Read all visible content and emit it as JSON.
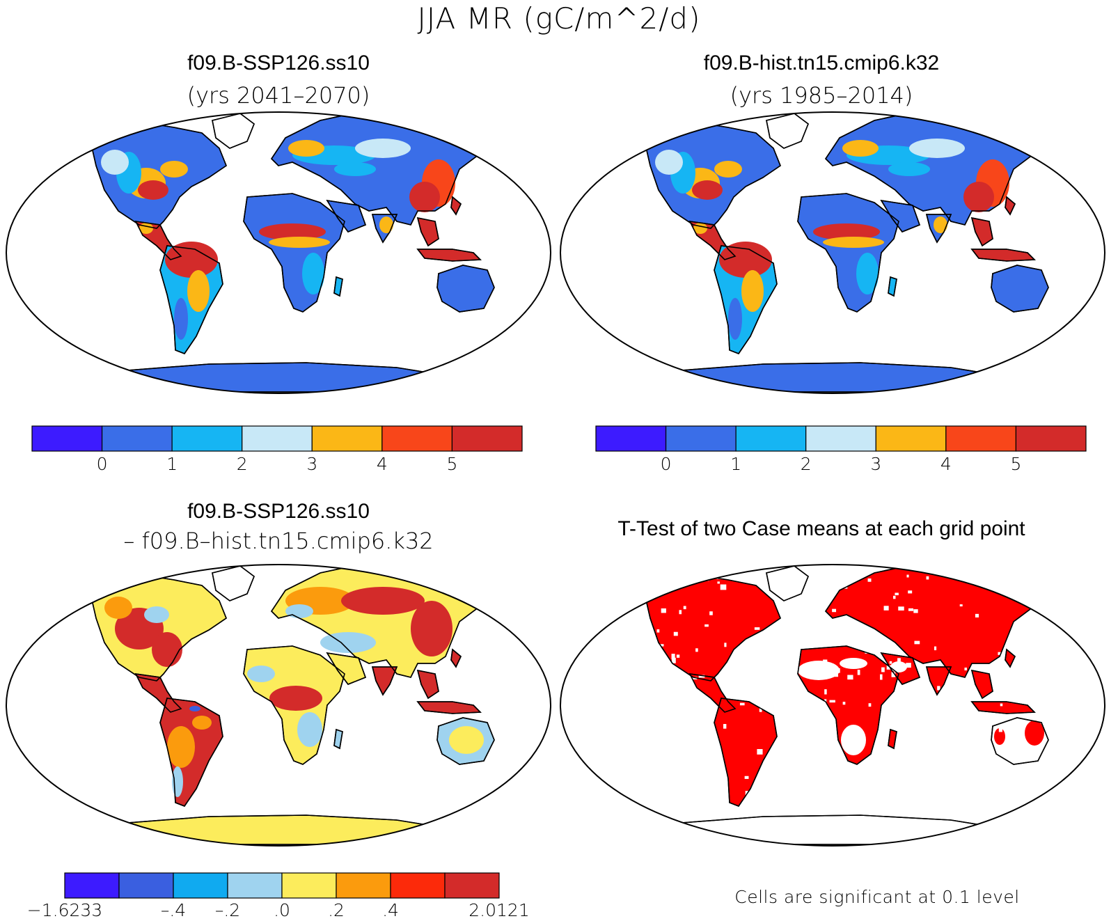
{
  "title": "JJA MR (gC/m^2/d)",
  "panels": [
    {
      "id": "ssp126",
      "title": "f09.B-SSP126.ss10",
      "subtitle": "(yrs 2041–2070)",
      "colorbar": {
        "colors": [
          "#3d1bff",
          "#3a6ee8",
          "#16b5f3",
          "#c8e8f7",
          "#fbb716",
          "#f8461a",
          "#d32b2a"
        ],
        "ticks": [
          "0",
          "1",
          "2",
          "3",
          "4",
          "5"
        ]
      }
    },
    {
      "id": "hist",
      "title": "f09.B-hist.tn15.cmip6.k32",
      "subtitle": "(yrs 1985–2014)",
      "colorbar": {
        "colors": [
          "#3d1bff",
          "#3a6ee8",
          "#16b5f3",
          "#c8e8f7",
          "#fbb716",
          "#f8461a",
          "#d32b2a"
        ],
        "ticks": [
          "0",
          "1",
          "2",
          "3",
          "4",
          "5"
        ]
      }
    },
    {
      "id": "diff",
      "title": "f09.B-SSP126.ss10",
      "subtitle": "– f09.B–hist.tn15.cmip6.k32",
      "colorbar": {
        "colors": [
          "#3d1bff",
          "#3a5fe0",
          "#10aaf0",
          "#9fd3ef",
          "#fcec5c",
          "#fb9b0d",
          "#fc2a0a",
          "#d32b2a"
        ],
        "ticks": [
          "−1.6233",
          "–.4",
          "–.2",
          ".0",
          ".2",
          ".4",
          "2.0121"
        ]
      }
    },
    {
      "id": "ttest",
      "title": "T-Test of two Case means at each grid point",
      "note": "Cells are significant at 0.1 level"
    }
  ]
}
